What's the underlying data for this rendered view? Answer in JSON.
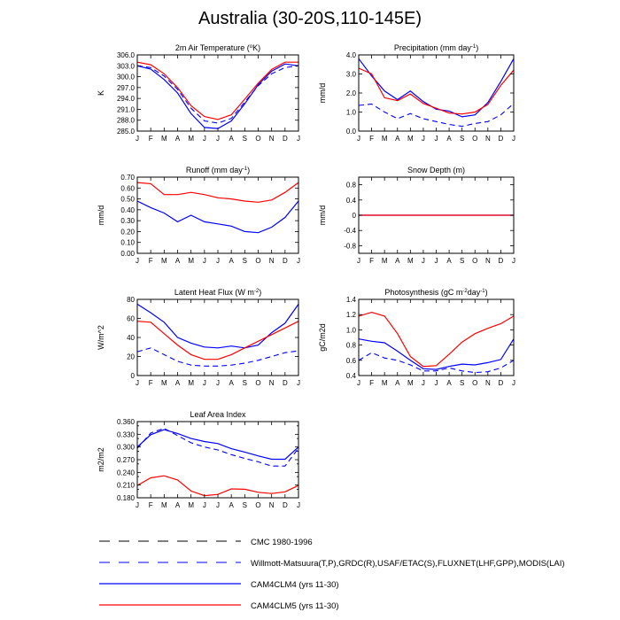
{
  "title": "Australia (30-20S,110-145E)",
  "months": [
    "J",
    "F",
    "M",
    "A",
    "M",
    "J",
    "J",
    "A",
    "S",
    "O",
    "N",
    "D",
    "J"
  ],
  "colors": {
    "model4": "#0000ff",
    "model5": "#ff0000",
    "obs_cmc": "#000000",
    "obs_wm": "#0000ff",
    "axis": "#000000"
  },
  "chart_data": [
    {
      "type": "line",
      "title_main": "2m Air Temperature (",
      "title_sup": "o",
      "title_tail": "K)",
      "ylabel": "K",
      "ylim": [
        285,
        306
      ],
      "yticks": [
        285.0,
        288.0,
        291.0,
        294.0,
        297.0,
        300.0,
        303.0,
        306.0
      ],
      "ytick_labels": [
        "285.0",
        "288.0",
        "291.0",
        "294.0",
        "297.0",
        "300.0",
        "303.0",
        "306.0"
      ],
      "series": [
        {
          "name": "CMC 1980-1996",
          "style": "obs_cmc",
          "values": []
        },
        {
          "name": "Willmott-Matsuura(T,P),GRDC(R),USAF/ETAC(S),FLUXNET(LHF,GPP),MODIS(LAI)",
          "style": "obs_wm",
          "values": [
            303.0,
            302.5,
            300.2,
            296.5,
            291.3,
            287.8,
            287.2,
            288.5,
            293.0,
            297.5,
            300.8,
            302.5,
            303.0
          ]
        },
        {
          "name": "CAM4CLM4 (yrs 11-30)",
          "style": "model4",
          "values": [
            303.0,
            302.1,
            299.2,
            295.5,
            289.8,
            286.0,
            285.7,
            287.8,
            292.5,
            297.8,
            301.5,
            303.5,
            303.0
          ]
        },
        {
          "name": "CAM4CLM5 (yrs 11-30)",
          "style": "model5",
          "values": [
            304.0,
            303.3,
            300.8,
            297.0,
            292.0,
            289.0,
            288.2,
            289.5,
            293.8,
            298.2,
            302.0,
            304.0,
            304.0
          ]
        }
      ]
    },
    {
      "type": "line",
      "title_main": "Precipitation (mm day",
      "title_sup": "-1",
      "title_tail": ")",
      "ylabel": "mm/d",
      "ylim": [
        0,
        4
      ],
      "yticks": [
        0,
        1,
        2,
        3,
        4
      ],
      "ytick_labels": [
        "0.0",
        "1.0",
        "2.0",
        "3.0",
        "4.0"
      ],
      "series": [
        {
          "name": "CMC 1980-1996",
          "style": "obs_cmc",
          "values": []
        },
        {
          "name": "Willmott-Matsuura(T,P),GRDC(R),USAF/ETAC(S),FLUXNET(LHF,GPP),MODIS(LAI)",
          "style": "obs_wm",
          "values": [
            1.35,
            1.42,
            1.0,
            0.65,
            0.92,
            0.65,
            0.5,
            0.35,
            0.25,
            0.4,
            0.5,
            0.85,
            1.45
          ]
        },
        {
          "name": "CAM4CLM4 (yrs 11-30)",
          "style": "model4",
          "values": [
            3.8,
            2.9,
            2.1,
            1.65,
            2.1,
            1.55,
            1.15,
            1.05,
            0.75,
            0.85,
            1.5,
            2.6,
            3.8
          ]
        },
        {
          "name": "CAM4CLM5 (yrs 11-30)",
          "style": "model5",
          "values": [
            3.3,
            3.0,
            1.75,
            1.6,
            1.95,
            1.45,
            1.2,
            0.95,
            0.9,
            1.0,
            1.4,
            2.4,
            3.2
          ]
        }
      ]
    },
    {
      "type": "line",
      "title_main": "Runoff (mm day",
      "title_sup": "-1",
      "title_tail": ")",
      "ylabel": "mm/d",
      "ylim": [
        0,
        0.7
      ],
      "yticks": [
        0,
        0.1,
        0.2,
        0.3,
        0.4,
        0.5,
        0.6,
        0.7
      ],
      "ytick_labels": [
        "0.00",
        "0.10",
        "0.20",
        "0.30",
        "0.40",
        "0.50",
        "0.60",
        "0.70"
      ],
      "series": [
        {
          "name": "CMC 1980-1996",
          "style": "obs_cmc",
          "values": []
        },
        {
          "name": "Willmott-Matsuura(T,P),GRDC(R),USAF/ETAC(S),FLUXNET(LHF,GPP),MODIS(LAI)",
          "style": "obs_wm",
          "values": []
        },
        {
          "name": "CAM4CLM4 (yrs 11-30)",
          "style": "model4",
          "values": [
            0.48,
            0.42,
            0.37,
            0.29,
            0.35,
            0.29,
            0.27,
            0.25,
            0.2,
            0.19,
            0.24,
            0.33,
            0.48
          ]
        },
        {
          "name": "CAM4CLM5 (yrs 11-30)",
          "style": "model5",
          "values": [
            0.65,
            0.64,
            0.54,
            0.54,
            0.56,
            0.54,
            0.51,
            0.5,
            0.48,
            0.47,
            0.49,
            0.56,
            0.65
          ]
        }
      ]
    },
    {
      "type": "line",
      "title_main": "Snow Depth (m)",
      "title_sup": "",
      "title_tail": "",
      "ylabel": "mm/d",
      "ylim": [
        -1,
        1
      ],
      "yticks": [
        -0.8,
        -0.4,
        0,
        0.4,
        0.8
      ],
      "ytick_labels": [
        "-0.8",
        "-0.4",
        "0",
        "0.4",
        "0.8"
      ],
      "series": [
        {
          "name": "CMC 1980-1996",
          "style": "obs_cmc",
          "values": [
            0,
            0,
            0,
            0,
            0,
            0,
            0,
            0,
            0,
            0,
            0,
            0,
            0
          ]
        },
        {
          "name": "Willmott-Matsuura(T,P),GRDC(R),USAF/ETAC(S),FLUXNET(LHF,GPP),MODIS(LAI)",
          "style": "obs_wm",
          "values": []
        },
        {
          "name": "CAM4CLM4 (yrs 11-30)",
          "style": "model4",
          "values": [
            0,
            0,
            0,
            0,
            0,
            0,
            0,
            0,
            0,
            0,
            0,
            0,
            0
          ]
        },
        {
          "name": "CAM4CLM5 (yrs 11-30)",
          "style": "model5",
          "values": [
            0,
            0,
            0,
            0,
            0,
            0,
            0,
            0,
            0,
            0,
            0,
            0,
            0
          ]
        }
      ]
    },
    {
      "type": "line",
      "title_main": "Latent Heat Flux (W m",
      "title_sup": "-2",
      "title_tail": ")",
      "ylabel": "W/m^2",
      "ylim": [
        0,
        80
      ],
      "yticks": [
        0,
        20,
        40,
        60,
        80
      ],
      "ytick_labels": [
        "0",
        "20",
        "40",
        "60",
        "80"
      ],
      "series": [
        {
          "name": "CMC 1980-1996",
          "style": "obs_cmc",
          "values": []
        },
        {
          "name": "Willmott-Matsuura(T,P),GRDC(R),USAF/ETAC(S),FLUXNET(LHF,GPP),MODIS(LAI)",
          "style": "obs_wm",
          "values": [
            25,
            29,
            22,
            15,
            11,
            10,
            10,
            11,
            13,
            16,
            20,
            24,
            26
          ]
        },
        {
          "name": "CAM4CLM4 (yrs 11-30)",
          "style": "model4",
          "values": [
            75,
            66,
            56,
            40,
            34,
            30,
            29,
            31,
            29,
            32,
            45,
            55,
            75
          ]
        },
        {
          "name": "CAM4CLM5 (yrs 11-30)",
          "style": "model5",
          "values": [
            57,
            56,
            44,
            32,
            22,
            17,
            17,
            22,
            29,
            36,
            43,
            50,
            57
          ]
        }
      ]
    },
    {
      "type": "line",
      "title_main": "Photosynthesis (gC m",
      "title_sup": "-2",
      "title_tail": "day",
      "title_sup2": "-1",
      "title_tail2": ")",
      "ylabel": "gC/m2d",
      "ylim": [
        0.4,
        1.4
      ],
      "yticks": [
        0.4,
        0.6,
        0.8,
        1.0,
        1.2,
        1.4
      ],
      "ytick_labels": [
        "0.4",
        "0.6",
        "0.8",
        "1.0",
        "1.2",
        "1.4"
      ],
      "series": [
        {
          "name": "CMC 1980-1996",
          "style": "obs_cmc",
          "values": []
        },
        {
          "name": "Willmott-Matsuura(T,P),GRDC(R),USAF/ETAC(S),FLUXNET(LHF,GPP),MODIS(LAI)",
          "style": "obs_wm",
          "values": [
            0.6,
            0.7,
            0.63,
            0.6,
            0.54,
            0.46,
            0.46,
            0.5,
            0.46,
            0.44,
            0.45,
            0.5,
            0.6
          ]
        },
        {
          "name": "CAM4CLM4 (yrs 11-30)",
          "style": "model4",
          "values": [
            0.88,
            0.85,
            0.83,
            0.72,
            0.6,
            0.49,
            0.48,
            0.52,
            0.55,
            0.54,
            0.57,
            0.61,
            0.88
          ]
        },
        {
          "name": "CAM4CLM5 (yrs 11-30)",
          "style": "model5",
          "values": [
            1.18,
            1.23,
            1.18,
            0.95,
            0.65,
            0.52,
            0.53,
            0.68,
            0.84,
            0.95,
            1.02,
            1.08,
            1.18
          ]
        }
      ]
    },
    {
      "type": "line",
      "title_main": "Leaf Area Index",
      "title_sup": "",
      "title_tail": "",
      "ylabel": "m2/m2",
      "ylim": [
        0.18,
        0.36
      ],
      "yticks": [
        0.18,
        0.2,
        0.21,
        0.23,
        0.24,
        0.26,
        0.27,
        0.29,
        0.3,
        0.32,
        0.33,
        0.35,
        0.36
      ],
      "ytick_labels": [
        "0.180",
        "0.210",
        "0.240",
        "0.270",
        "0.300",
        "0.330",
        "0.360"
      ],
      "series": [
        {
          "name": "CMC 1980-1996",
          "style": "obs_cmc",
          "values": []
        },
        {
          "name": "Willmott-Matsuura(T,P),GRDC(R),USAF/ETAC(S),FLUXNET(LHF,GPP),MODIS(LAI)",
          "style": "obs_wm",
          "values": [
            0.297,
            0.333,
            0.344,
            0.327,
            0.31,
            0.3,
            0.293,
            0.282,
            0.273,
            0.265,
            0.255,
            0.255,
            0.297
          ]
        },
        {
          "name": "CAM4CLM4 (yrs 11-30)",
          "style": "model4",
          "values": [
            0.3,
            0.329,
            0.341,
            0.332,
            0.32,
            0.313,
            0.308,
            0.296,
            0.288,
            0.279,
            0.271,
            0.271,
            0.3
          ]
        },
        {
          "name": "CAM4CLM5 (yrs 11-30)",
          "style": "model5",
          "values": [
            0.209,
            0.227,
            0.232,
            0.222,
            0.196,
            0.185,
            0.188,
            0.201,
            0.2,
            0.193,
            0.19,
            0.194,
            0.209
          ]
        }
      ]
    }
  ],
  "legend": [
    {
      "label": "CMC 1980-1996",
      "style": "obs_cmc"
    },
    {
      "label": "Willmott-Matsuura(T,P),GRDC(R),USAF/ETAC(S),FLUXNET(LHF,GPP),MODIS(LAI)",
      "style": "obs_wm"
    },
    {
      "label": "CAM4CLM4 (yrs 11-30)",
      "style": "model4"
    },
    {
      "label": "CAM4CLM5 (yrs 11-30)",
      "style": "model5"
    }
  ]
}
